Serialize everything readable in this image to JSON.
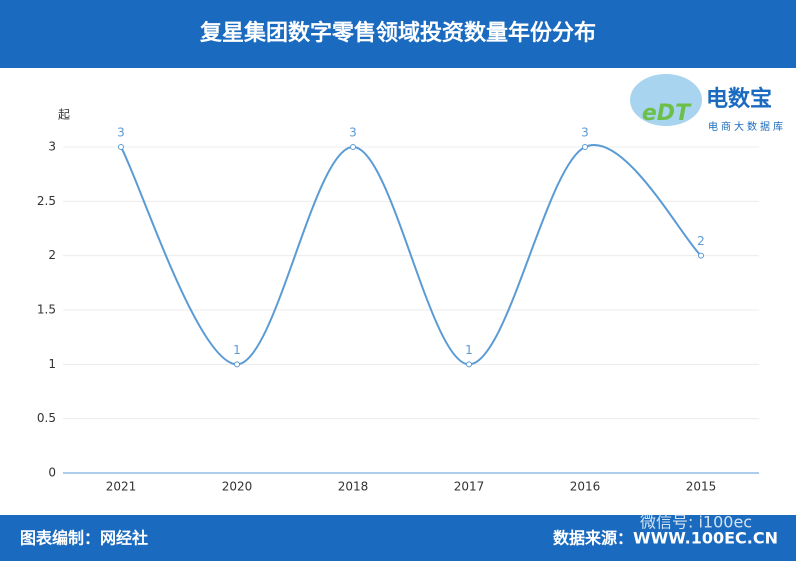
{
  "chart_data": {
    "type": "line",
    "title": "复星集团数字零售领域投资数量年份分布",
    "y_label": "起",
    "categories": [
      "2021",
      "2020",
      "2018",
      "2017",
      "2016",
      "2015"
    ],
    "values": [
      3,
      1,
      3,
      1,
      3,
      2
    ],
    "color": "#5b9bd5",
    "ylim": [
      0,
      3
    ],
    "yticks": [
      0,
      0.5,
      1,
      1.5,
      2,
      2.5,
      3
    ],
    "grid": true
  },
  "branding": {
    "logo_name": "电数宝",
    "logo_sub": "电商大数据库",
    "logo_mark": "eDT",
    "credit": "图表编制：网经社",
    "source": "数据来源：WWW.100EC.CN",
    "watermark": "微信号: i100ec"
  }
}
